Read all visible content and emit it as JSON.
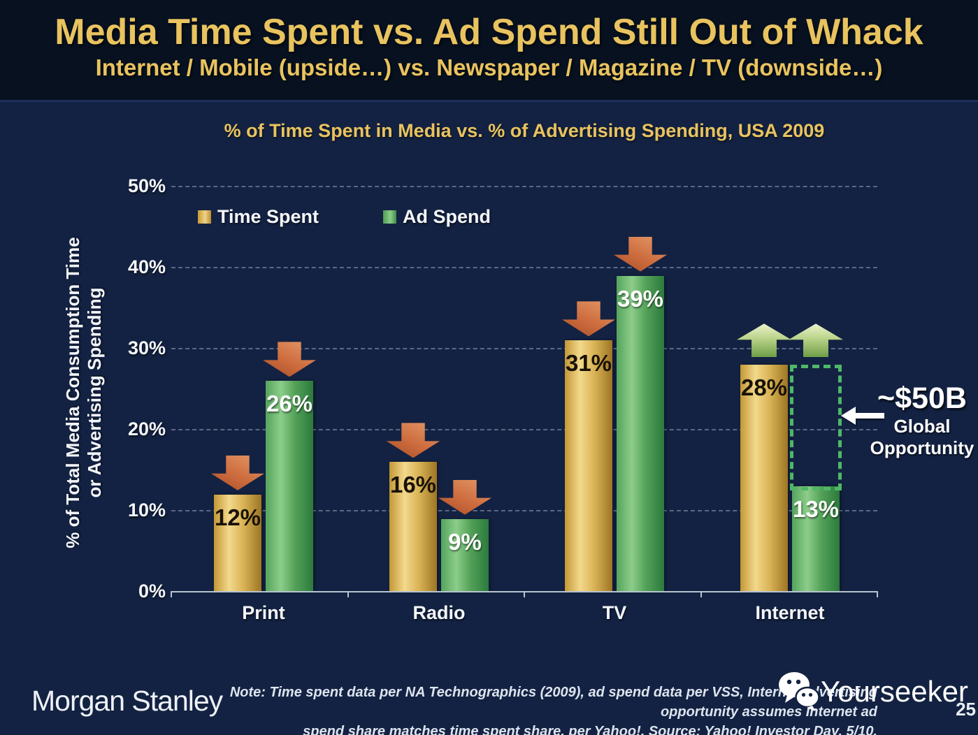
{
  "slide": {
    "title": "Media Time Spent vs. Ad Spend Still Out of Whack",
    "subtitle": "Internet / Mobile (upside…) vs. Newspaper / Magazine / TV (downside…)",
    "page_number": "25"
  },
  "chart_data": {
    "type": "bar",
    "title": "% of Time Spent in Media vs. % of Advertising Spending, USA 2009",
    "categories": [
      "Print",
      "Radio",
      "TV",
      "Internet"
    ],
    "series": [
      {
        "name": "Time Spent",
        "color": "#E0B24B",
        "values": [
          12,
          16,
          31,
          28
        ],
        "labels": [
          "12%",
          "16%",
          "31%",
          "28%"
        ]
      },
      {
        "name": "Ad Spend",
        "color": "#5BAA5F",
        "values": [
          26,
          9,
          39,
          13
        ],
        "labels": [
          "26%",
          "9%",
          "39%",
          "13%"
        ]
      }
    ],
    "trend_per_category": [
      "down",
      "down",
      "down",
      "up"
    ],
    "ylabel_line1": "% of Total Media Consumption Time",
    "ylabel_line2": "or Advertising Spending",
    "yticks": [
      {
        "label": "50%",
        "value": 50
      },
      {
        "label": "40%",
        "value": 40
      },
      {
        "label": "30%",
        "value": 30
      },
      {
        "label": "20%",
        "value": 20
      },
      {
        "label": "10%",
        "value": 10
      },
      {
        "label": "0%",
        "value": 0
      }
    ],
    "ylim": [
      0,
      50
    ],
    "grid": "horizontal-dashed",
    "legend_position": "top-left-inside",
    "annotations": {
      "opportunity_value": "~$50B",
      "opportunity_label_line1": "Global",
      "opportunity_label_line2": "Opportunity",
      "opportunity_target": "Internet ad spend gap between 13% and 28%",
      "down_arrow_color": "#C96B3F",
      "up_arrow_color": "#AFCF7E",
      "gap_box_color": "#4FB768"
    }
  },
  "footer": {
    "brand": "Morgan Stanley",
    "note_line1": "Note: Time spent data per NA Technographics (2009), ad spend data per VSS, Internet advertising opportunity assumes Internet ad",
    "note_line2": "spend share matches time spent share, per Yahoo!. Source: Yahoo! Investor Day, 5/10.",
    "watermark": "Yourseeker"
  },
  "colors": {
    "body_background": "#132242",
    "header_background": "#071120",
    "heading_text": "#E9C35F",
    "axis": "#B9C3D2"
  }
}
